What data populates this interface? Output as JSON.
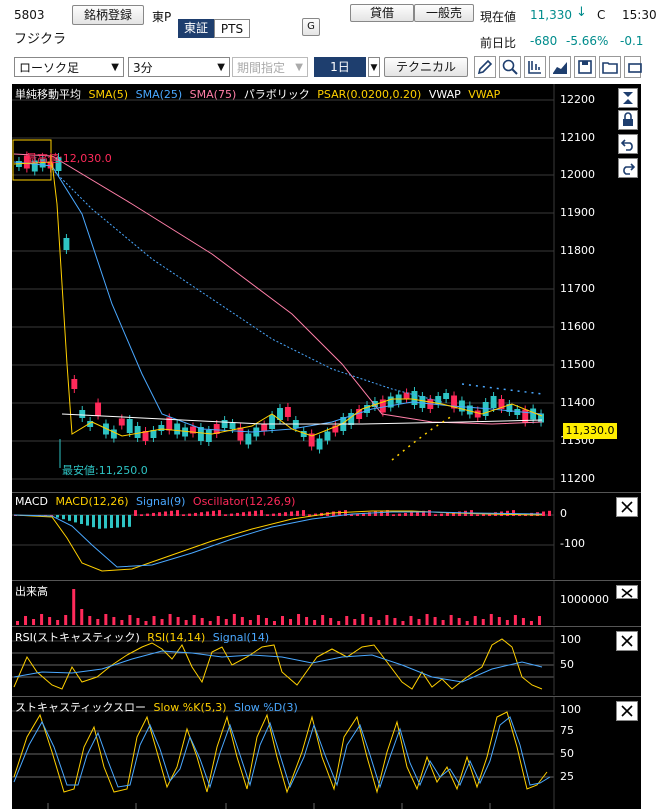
{
  "header": {
    "code": "5803",
    "name": "フジクラ",
    "watch_button": "銘柄登録",
    "market": "東P",
    "exchange_tabs": [
      "東証",
      "PTS"
    ],
    "g_button": "G",
    "order_buttons": [
      "貸借",
      "一般売"
    ],
    "current_label": "現在値",
    "current_value": "11,330",
    "current_arrow": "↓",
    "current_flag": "C",
    "current_time": "15:30",
    "change_label": "前日比",
    "change_value": "-680",
    "change_pct": "-5.66%",
    "change_extra": "-0.1"
  },
  "toolbar": {
    "chart_type": "ローソク足",
    "interval": "3分",
    "period_placeholder": "期間指定",
    "range": "1日",
    "technical": "テクニカル",
    "icons": [
      "pencil-icon",
      "zoom-icon",
      "crosshair-icon",
      "line-chart-icon",
      "save-icon",
      "folder-icon",
      "print-icon"
    ]
  },
  "price_panel": {
    "title": "単純移動平均",
    "legend": [
      {
        "label": "SMA(5)",
        "color": "#ffd000"
      },
      {
        "label": "SMA(25)",
        "color": "#4aa8ff"
      },
      {
        "label": "SMA(75)",
        "color": "#ff7fa8"
      },
      {
        "label": "パラボリック",
        "color": "#ffffff"
      },
      {
        "label": "PSAR(0.0200,0.20)",
        "color": "#ffd000"
      },
      {
        "label": "VWAP",
        "color": "#ffffff"
      },
      {
        "label": "VWAP",
        "color": "#ffd000"
      }
    ],
    "high_label": "最高値:12,030.0",
    "low_label": "最安値:11,250.0",
    "last_price": "11,330.0",
    "y_ticks": [
      "12200",
      "12100",
      "12000",
      "11900",
      "11800",
      "11700",
      "11600",
      "11500",
      "11400",
      "11300",
      "11200"
    ],
    "side_icons": [
      "expand-icon",
      "lock-icon",
      "undo-icon",
      "redo-icon"
    ]
  },
  "macd_panel": {
    "title": "MACD",
    "legend": [
      {
        "label": "MACD(12,26)",
        "color": "#ffd000"
      },
      {
        "label": "Signal(9)",
        "color": "#4aa8ff"
      },
      {
        "label": "Oscillator(12,26,9)",
        "color": "#ff2a5a"
      }
    ],
    "y_ticks": [
      "0",
      "-100"
    ]
  },
  "volume_panel": {
    "title": "出来高",
    "y_ticks": [
      "1000000"
    ]
  },
  "rsi_panel": {
    "title": "RSI(ストキャスティック)",
    "legend": [
      {
        "label": "RSI(14,14)",
        "color": "#ffd000"
      },
      {
        "label": "Signal(14)",
        "color": "#4aa8ff"
      }
    ],
    "y_ticks": [
      "100",
      "50"
    ]
  },
  "stoch_panel": {
    "title": "ストキャスティックスロー",
    "legend": [
      {
        "label": "Slow %K(5,3)",
        "color": "#ffd000"
      },
      {
        "label": "Slow %D(3)",
        "color": "#4aa8ff"
      }
    ],
    "y_ticks": [
      "100",
      "75",
      "50",
      "25"
    ]
  },
  "colors": {
    "up": "#2ec4c4",
    "down": "#ff2a5a",
    "change_text": "#008c8c"
  }
}
